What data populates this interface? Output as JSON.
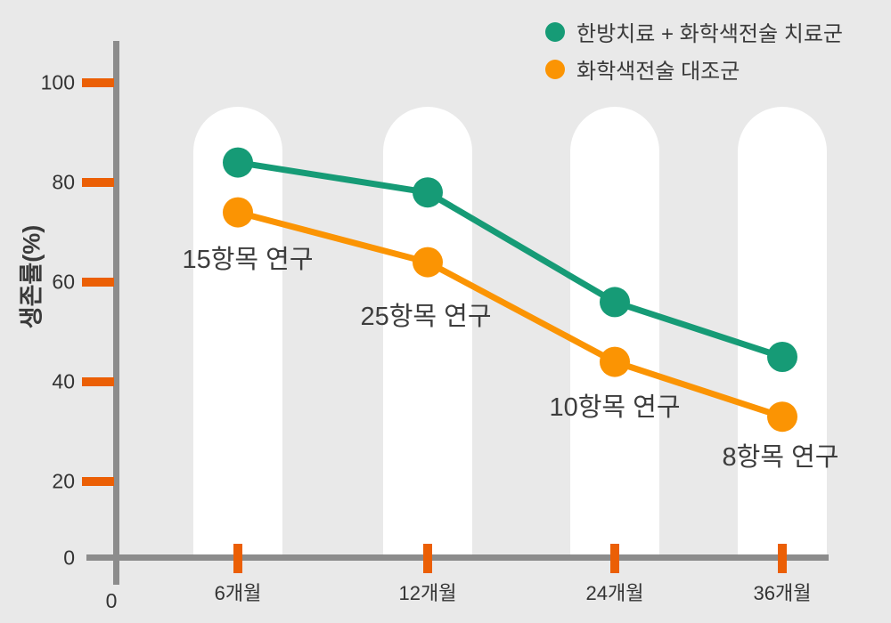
{
  "chart_data": {
    "type": "line",
    "title": "",
    "ylabel": "생존률(%)",
    "xlabel": "",
    "categories": [
      "6개월",
      "12개월",
      "24개월",
      "36개월"
    ],
    "series": [
      {
        "name": "한방치료 + 화학색전술 치료군",
        "color": "#169b76",
        "values": [
          84,
          78,
          56,
          45
        ]
      },
      {
        "name": "화학색전술 대조군",
        "color": "#fb9403",
        "values": [
          74,
          64,
          44,
          33
        ]
      }
    ],
    "annotations": [
      {
        "text": "15항목 연구"
      },
      {
        "text": "25항목 연구"
      },
      {
        "text": "10항목 연구"
      },
      {
        "text": "8항목 연구"
      }
    ],
    "yticks": [
      100,
      80,
      60,
      40,
      20
    ],
    "origin_y_label": "0",
    "origin_x_label": "0",
    "ylim": [
      0,
      110
    ],
    "grid": false,
    "legend_position": "top-right",
    "colors": {
      "background": "#e9e9e9",
      "band": "#ffffff",
      "axis": "#8c8c8c",
      "tick": "#eb5f05",
      "text": "#3a3a3a"
    }
  }
}
